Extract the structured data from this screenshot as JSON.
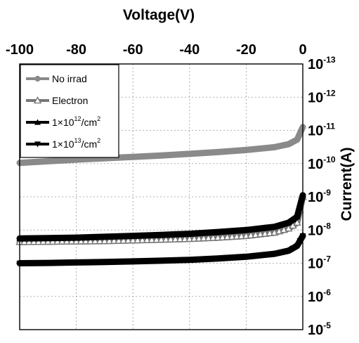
{
  "chart_data": {
    "type": "line",
    "title": "",
    "xlabel": "Voltage(V)",
    "ylabel": "Current(A)",
    "xlim": [
      -100,
      0
    ],
    "x_tick_labels": [
      "-100",
      "-80",
      "-60",
      "-40",
      "-20",
      "0"
    ],
    "x_ticks": [
      -100,
      -80,
      -60,
      -40,
      -20,
      0
    ],
    "y_axis_inverted": true,
    "y_scale": "log",
    "y_tick_labels": [
      {
        "base": "10",
        "exp": "-13",
        "value": 1e-13
      },
      {
        "base": "10",
        "exp": "-12",
        "value": 1e-12
      },
      {
        "base": "10",
        "exp": "-11",
        "value": 1e-11
      },
      {
        "base": "10",
        "exp": "-10",
        "value": 1e-10
      },
      {
        "base": "10",
        "exp": "-9",
        "value": 1e-09
      },
      {
        "base": "10",
        "exp": "-8",
        "value": 1e-08
      },
      {
        "base": "10",
        "exp": "-7",
        "value": 1e-07
      },
      {
        "base": "10",
        "exp": "-6",
        "value": 1e-06
      },
      {
        "base": "10",
        "exp": "-5",
        "value": 1e-05
      }
    ],
    "x_axis_position": "top",
    "y_axis_position": "right",
    "grid": true,
    "legend_position": "top-left",
    "series": [
      {
        "name": "No irrad",
        "color": "#8a8a8a",
        "marker": "star",
        "x": [
          -100,
          -90,
          -80,
          -70,
          -60,
          -50,
          -40,
          -30,
          -20,
          -10,
          -5,
          -2,
          0
        ],
        "y": [
          9.5e-11,
          8.5e-11,
          7.6e-11,
          6.9e-11,
          6.3e-11,
          5.7e-11,
          5.1e-11,
          4.5e-11,
          3.9e-11,
          3.2e-11,
          2.6e-11,
          1.9e-11,
          8e-12
        ]
      },
      {
        "name": "Electron",
        "color": "#777777",
        "marker": "triangle-up-open",
        "x": [
          -100,
          -90,
          -80,
          -70,
          -60,
          -50,
          -40,
          -30,
          -20,
          -10,
          -5,
          -2,
          0
        ],
        "y": [
          2.3e-08,
          2.25e-08,
          2.2e-08,
          2.15e-08,
          2.05e-08,
          1.95e-08,
          1.85e-08,
          1.7e-08,
          1.5e-08,
          1.2e-08,
          9e-09,
          6e-09,
          1e-09
        ]
      },
      {
        "name": "1x10^12/cm^2",
        "color": "#000000",
        "marker": "triangle-up",
        "x": [
          -100,
          -90,
          -80,
          -70,
          -60,
          -50,
          -40,
          -30,
          -20,
          -10,
          -5,
          -2,
          0
        ],
        "y": [
          1.8e-08,
          1.75e-08,
          1.7e-08,
          1.6e-08,
          1.5e-08,
          1.4e-08,
          1.3e-08,
          1.15e-08,
          1e-08,
          8e-09,
          6e-09,
          4e-09,
          9e-10
        ]
      },
      {
        "name": "1x10^13/cm^2",
        "color": "#000000",
        "marker": "triangle-down",
        "x": [
          -100,
          -90,
          -80,
          -70,
          -60,
          -50,
          -40,
          -30,
          -20,
          -10,
          -5,
          -2,
          0
        ],
        "y": [
          1e-07,
          9.8e-08,
          9.5e-08,
          9.2e-08,
          8.8e-08,
          8.4e-08,
          7.9e-08,
          7.2e-08,
          6.4e-08,
          5.2e-08,
          4.2e-08,
          3e-08,
          1.5e-08
        ]
      }
    ],
    "legend": [
      {
        "name": "No irrad",
        "text": "No irrad",
        "sup1": "",
        "mid": "",
        "sup2": ""
      },
      {
        "name": "Electron",
        "text": "Electron",
        "sup1": "",
        "mid": "",
        "sup2": ""
      },
      {
        "name": "1x10^12/cm^2",
        "text": "1×10",
        "sup1": "12",
        "mid": "/cm",
        "sup2": "2"
      },
      {
        "name": "1x10^13/cm^2",
        "text": "1×10",
        "sup1": "13",
        "mid": "/cm",
        "sup2": "2"
      }
    ]
  }
}
